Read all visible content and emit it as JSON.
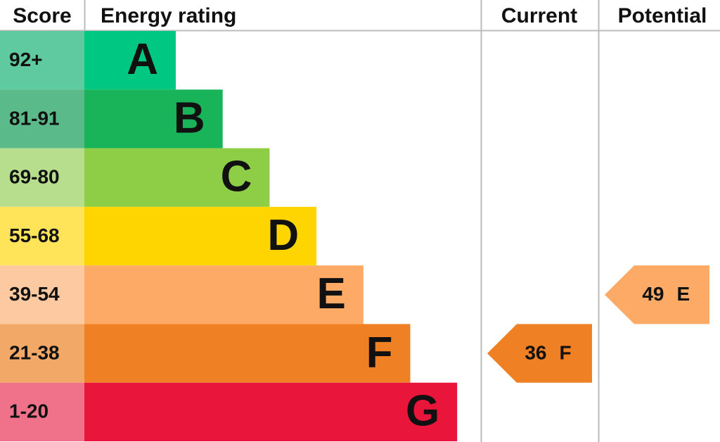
{
  "header": {
    "score": "Score",
    "rating": "Energy rating",
    "current": "Current",
    "potential": "Potential"
  },
  "bands": [
    {
      "score": "92+",
      "rating": "A",
      "color": "#00c781",
      "score_color": "#5fc9a0"
    },
    {
      "score": "81-91",
      "rating": "B",
      "color": "#19b459",
      "score_color": "#5bba8a"
    },
    {
      "score": "69-80",
      "rating": "C",
      "color": "#8dce46",
      "score_color": "#b7de8c"
    },
    {
      "score": "55-68",
      "rating": "D",
      "color": "#ffd500",
      "score_color": "#ffe45a"
    },
    {
      "score": "39-54",
      "rating": "E",
      "color": "#fcaa65",
      "score_color": "#fdc9a0"
    },
    {
      "score": "21-38",
      "rating": "F",
      "color": "#ef8023",
      "score_color": "#f2a867"
    },
    {
      "score": "1-20",
      "rating": "G",
      "color": "#e9153b",
      "score_color": "#f0728a"
    }
  ],
  "current": {
    "score": 36,
    "rating": "F"
  },
  "potential": {
    "score": 49,
    "rating": "E"
  }
}
